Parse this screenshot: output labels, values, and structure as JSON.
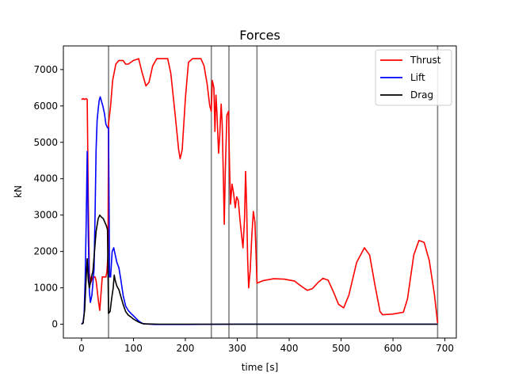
{
  "chart_data": {
    "type": "line",
    "title": "Forces",
    "xlabel": "time [s]",
    "ylabel": "kN",
    "xlim": [
      -35,
      722
    ],
    "ylim": [
      -380,
      7650
    ],
    "xticks": [
      0,
      100,
      200,
      300,
      400,
      500,
      600,
      700
    ],
    "yticks": [
      0,
      1000,
      2000,
      3000,
      4000,
      5000,
      6000,
      7000
    ],
    "grid": false,
    "legend": {
      "placement": "top-right"
    },
    "event_lines": [
      52,
      250,
      284,
      338,
      686
    ],
    "series": [
      {
        "name": "Thrust",
        "color": "#ff0000",
        "points": [
          [
            0,
            6180
          ],
          [
            3,
            6200
          ],
          [
            6,
            6180
          ],
          [
            9,
            6200
          ],
          [
            11,
            6180
          ],
          [
            13,
            3300
          ],
          [
            15,
            1400
          ],
          [
            18,
            1150
          ],
          [
            22,
            1300
          ],
          [
            26,
            1300
          ],
          [
            28,
            1200
          ],
          [
            32,
            700
          ],
          [
            35,
            380
          ],
          [
            40,
            1300
          ],
          [
            44,
            1300
          ],
          [
            47,
            1300
          ],
          [
            49,
            1450
          ],
          [
            51,
            1900
          ],
          [
            52,
            5500
          ],
          [
            56,
            6000
          ],
          [
            60,
            6700
          ],
          [
            66,
            7150
          ],
          [
            72,
            7250
          ],
          [
            80,
            7250
          ],
          [
            85,
            7150
          ],
          [
            90,
            7150
          ],
          [
            100,
            7250
          ],
          [
            110,
            7300
          ],
          [
            117,
            6900
          ],
          [
            124,
            6550
          ],
          [
            130,
            6650
          ],
          [
            137,
            7100
          ],
          [
            145,
            7300
          ],
          [
            155,
            7300
          ],
          [
            166,
            7300
          ],
          [
            172,
            6900
          ],
          [
            180,
            5800
          ],
          [
            187,
            4800
          ],
          [
            190,
            4550
          ],
          [
            194,
            4800
          ],
          [
            200,
            6200
          ],
          [
            206,
            7200
          ],
          [
            214,
            7300
          ],
          [
            230,
            7300
          ],
          [
            236,
            7100
          ],
          [
            242,
            6600
          ],
          [
            247,
            6000
          ],
          [
            250,
            5850
          ],
          [
            252,
            6700
          ],
          [
            255,
            6500
          ],
          [
            257,
            5300
          ],
          [
            259,
            6300
          ],
          [
            261,
            5800
          ],
          [
            264,
            4700
          ],
          [
            266,
            5100
          ],
          [
            269,
            6050
          ],
          [
            271,
            5500
          ],
          [
            273,
            4200
          ],
          [
            275,
            2750
          ],
          [
            277,
            4200
          ],
          [
            280,
            5750
          ],
          [
            283,
            5850
          ],
          [
            285,
            4400
          ],
          [
            287,
            3300
          ],
          [
            290,
            3850
          ],
          [
            293,
            3600
          ],
          [
            296,
            3200
          ],
          [
            299,
            3500
          ],
          [
            302,
            3400
          ],
          [
            305,
            2900
          ],
          [
            308,
            2500
          ],
          [
            311,
            2100
          ],
          [
            314,
            2900
          ],
          [
            316,
            4200
          ],
          [
            318,
            3300
          ],
          [
            320,
            1800
          ],
          [
            322,
            1000
          ],
          [
            325,
            1500
          ],
          [
            328,
            2400
          ],
          [
            331,
            3100
          ],
          [
            334,
            2800
          ],
          [
            336,
            2000
          ],
          [
            338,
            1130
          ],
          [
            350,
            1200
          ],
          [
            370,
            1250
          ],
          [
            390,
            1240
          ],
          [
            410,
            1190
          ],
          [
            420,
            1080
          ],
          [
            435,
            930
          ],
          [
            445,
            980
          ],
          [
            455,
            1140
          ],
          [
            465,
            1260
          ],
          [
            475,
            1210
          ],
          [
            485,
            900
          ],
          [
            495,
            550
          ],
          [
            505,
            450
          ],
          [
            515,
            800
          ],
          [
            530,
            1700
          ],
          [
            545,
            2100
          ],
          [
            555,
            1900
          ],
          [
            565,
            1100
          ],
          [
            575,
            350
          ],
          [
            580,
            260
          ],
          [
            600,
            280
          ],
          [
            620,
            330
          ],
          [
            628,
            700
          ],
          [
            640,
            1900
          ],
          [
            650,
            2300
          ],
          [
            660,
            2250
          ],
          [
            670,
            1750
          ],
          [
            680,
            800
          ],
          [
            686,
            30
          ]
        ]
      },
      {
        "name": "Lift",
        "color": "#0000ff",
        "points": [
          [
            0,
            0
          ],
          [
            3,
            50
          ],
          [
            5,
            300
          ],
          [
            7,
            1200
          ],
          [
            9,
            2800
          ],
          [
            11,
            4750
          ],
          [
            13,
            2400
          ],
          [
            15,
            900
          ],
          [
            17,
            600
          ],
          [
            20,
            800
          ],
          [
            24,
            1500
          ],
          [
            26,
            3000
          ],
          [
            28,
            4800
          ],
          [
            30,
            5600
          ],
          [
            32,
            5900
          ],
          [
            34,
            6150
          ],
          [
            36,
            6250
          ],
          [
            38,
            6150
          ],
          [
            41,
            6000
          ],
          [
            44,
            5800
          ],
          [
            47,
            5500
          ],
          [
            50,
            5400
          ],
          [
            52,
            5400
          ],
          [
            54,
            1300
          ],
          [
            56,
            1300
          ],
          [
            59,
            2000
          ],
          [
            62,
            2100
          ],
          [
            65,
            1900
          ],
          [
            68,
            1700
          ],
          [
            72,
            1550
          ],
          [
            76,
            1200
          ],
          [
            80,
            800
          ],
          [
            85,
            500
          ],
          [
            90,
            380
          ],
          [
            95,
            300
          ],
          [
            100,
            230
          ],
          [
            105,
            160
          ],
          [
            110,
            90
          ],
          [
            115,
            40
          ],
          [
            120,
            10
          ],
          [
            140,
            -5
          ],
          [
            200,
            -5
          ],
          [
            250,
            -3
          ],
          [
            300,
            0
          ],
          [
            400,
            0
          ],
          [
            500,
            0
          ],
          [
            600,
            0
          ],
          [
            686,
            0
          ]
        ]
      },
      {
        "name": "Drag",
        "color": "#000000",
        "points": [
          [
            0,
            0
          ],
          [
            3,
            30
          ],
          [
            6,
            400
          ],
          [
            9,
            1300
          ],
          [
            11,
            1800
          ],
          [
            13,
            1200
          ],
          [
            15,
            1000
          ],
          [
            18,
            1200
          ],
          [
            20,
            1350
          ],
          [
            22,
            1450
          ],
          [
            25,
            2000
          ],
          [
            28,
            2550
          ],
          [
            32,
            2900
          ],
          [
            35,
            3000
          ],
          [
            38,
            2950
          ],
          [
            42,
            2900
          ],
          [
            45,
            2800
          ],
          [
            48,
            2700
          ],
          [
            50,
            2600
          ],
          [
            52,
            300
          ],
          [
            55,
            350
          ],
          [
            58,
            700
          ],
          [
            61,
            1000
          ],
          [
            63,
            1350
          ],
          [
            65,
            1200
          ],
          [
            68,
            1050
          ],
          [
            72,
            950
          ],
          [
            76,
            750
          ],
          [
            80,
            550
          ],
          [
            85,
            350
          ],
          [
            90,
            250
          ],
          [
            95,
            200
          ],
          [
            100,
            140
          ],
          [
            105,
            100
          ],
          [
            110,
            60
          ],
          [
            115,
            30
          ],
          [
            120,
            10
          ],
          [
            150,
            0
          ],
          [
            250,
            0
          ],
          [
            300,
            0
          ],
          [
            500,
            0
          ],
          [
            686,
            0
          ]
        ]
      }
    ]
  }
}
